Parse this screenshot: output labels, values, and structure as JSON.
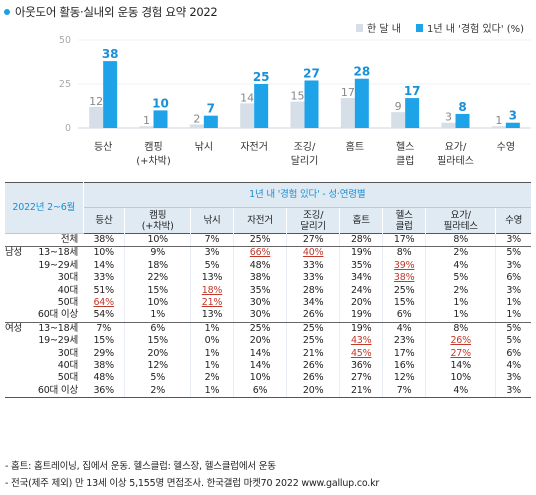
{
  "title": "아웃도어 활동·실내외 운동 경험 요약 2022",
  "chart_data": {
    "type": "bar",
    "categories": [
      "등산",
      "캠핑\n(+차박)",
      "낚시",
      "자전거",
      "조깅/\n달리기",
      "홈트",
      "헬스\n클럽",
      "요가/\n필라테스",
      "수영"
    ],
    "series": [
      {
        "name": "한 달 내",
        "values": [
          12,
          1,
          2,
          14,
          15,
          17,
          9,
          3,
          1
        ],
        "color": "#d6dee8"
      },
      {
        "name": "1년 내 '경험 있다' (%)",
        "values": [
          38,
          10,
          7,
          25,
          27,
          28,
          17,
          8,
          3
        ],
        "color": "#1ea2e8"
      }
    ],
    "ylim": [
      0,
      50
    ],
    "yticks": [
      0,
      25,
      50
    ],
    "legend": "top-right",
    "grid": true
  },
  "legend": {
    "month": "한 달 내",
    "year": "1년 내 '경험 있다' (%)"
  },
  "table": {
    "year_label": "2022년 2~6월",
    "group_header": "1년 내 '경험 있다' - 성·연령별",
    "columns": [
      "등산",
      "캠핑\n(+차박)",
      "낚시",
      "자전거",
      "조깅/\n달리기",
      "홈트",
      "헬스\n클럽",
      "요가/\n필라테스",
      "수영"
    ],
    "rows": [
      {
        "group": "",
        "label": "전체",
        "values": [
          "38%",
          "10%",
          "7%",
          "25%",
          "27%",
          "28%",
          "17%",
          "8%",
          "3%"
        ],
        "hl": []
      },
      {
        "group": "남성",
        "label": "13~18세",
        "values": [
          "10%",
          "9%",
          "3%",
          "66%",
          "40%",
          "19%",
          "8%",
          "2%",
          "5%"
        ],
        "hl": [
          3,
          4
        ]
      },
      {
        "group": "",
        "label": "19~29세",
        "values": [
          "14%",
          "18%",
          "5%",
          "48%",
          "33%",
          "35%",
          "39%",
          "4%",
          "3%"
        ],
        "hl": [
          6
        ]
      },
      {
        "group": "",
        "label": "30대",
        "values": [
          "33%",
          "22%",
          "13%",
          "38%",
          "33%",
          "34%",
          "38%",
          "5%",
          "6%"
        ],
        "hl": [
          6
        ]
      },
      {
        "group": "",
        "label": "40대",
        "values": [
          "51%",
          "15%",
          "18%",
          "35%",
          "28%",
          "24%",
          "25%",
          "2%",
          "3%"
        ],
        "hl": [
          2
        ]
      },
      {
        "group": "",
        "label": "50대",
        "values": [
          "64%",
          "10%",
          "21%",
          "30%",
          "34%",
          "20%",
          "15%",
          "1%",
          "1%"
        ],
        "hl": [
          0,
          2
        ]
      },
      {
        "group": "",
        "label": "60대 이상",
        "values": [
          "54%",
          "1%",
          "13%",
          "30%",
          "26%",
          "19%",
          "6%",
          "1%",
          "1%"
        ],
        "hl": []
      },
      {
        "group": "여성",
        "label": "13~18세",
        "values": [
          "7%",
          "6%",
          "1%",
          "25%",
          "25%",
          "19%",
          "4%",
          "8%",
          "5%"
        ],
        "hl": []
      },
      {
        "group": "",
        "label": "19~29세",
        "values": [
          "15%",
          "15%",
          "0%",
          "20%",
          "25%",
          "43%",
          "23%",
          "26%",
          "5%"
        ],
        "hl": [
          5,
          7
        ]
      },
      {
        "group": "",
        "label": "30대",
        "values": [
          "29%",
          "20%",
          "1%",
          "14%",
          "21%",
          "45%",
          "17%",
          "27%",
          "6%"
        ],
        "hl": [
          5,
          7
        ]
      },
      {
        "group": "",
        "label": "40대",
        "values": [
          "38%",
          "12%",
          "1%",
          "14%",
          "26%",
          "36%",
          "16%",
          "14%",
          "4%"
        ],
        "hl": []
      },
      {
        "group": "",
        "label": "50대",
        "values": [
          "48%",
          "5%",
          "2%",
          "10%",
          "26%",
          "27%",
          "12%",
          "10%",
          "3%"
        ],
        "hl": []
      },
      {
        "group": "",
        "label": "60대 이상",
        "values": [
          "36%",
          "2%",
          "1%",
          "6%",
          "20%",
          "21%",
          "7%",
          "4%",
          "3%"
        ],
        "hl": []
      }
    ]
  },
  "notes": [
    "- 홈트: 홈트레이닝, 집에서 운동. 헬스클럽: 헬스장, 헬스클럽에서 운동",
    "- 전국(제주 제외) 만 13세 이상 5,155명 면접조사. 한국갤럽 마켓70 2022 www.gallup.co.kr"
  ]
}
